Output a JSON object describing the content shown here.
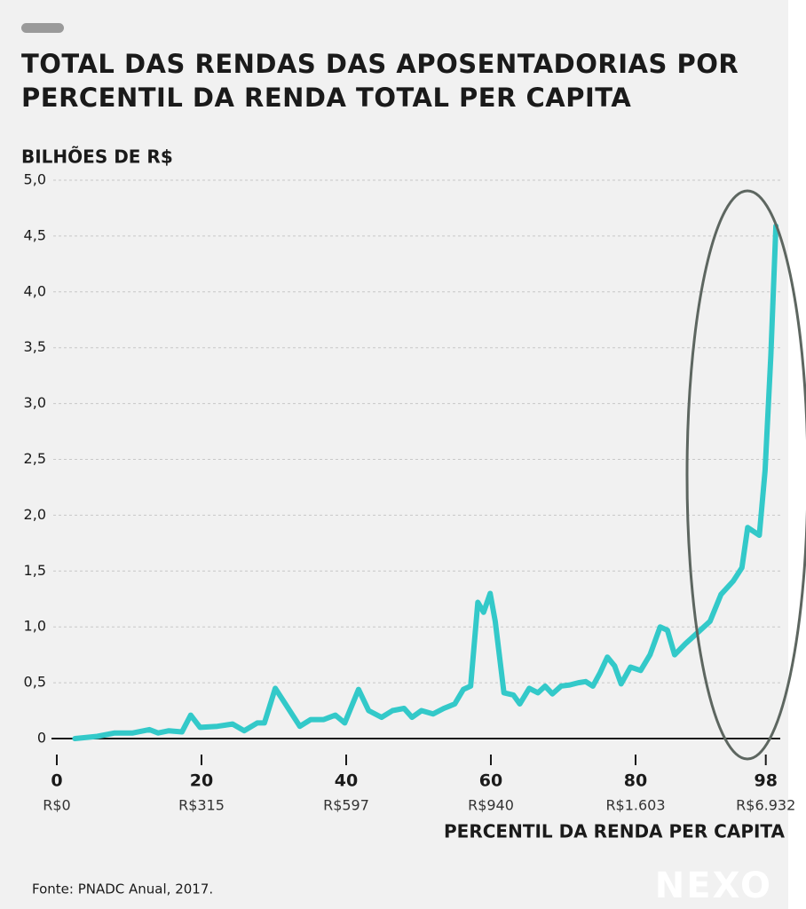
{
  "chart_data": {
    "type": "line",
    "title": [
      "TOTAL DAS RENDAS DAS APOSENTADORIAS POR",
      "PERCENTIL DA RENDA TOTAL PER CAPITA"
    ],
    "y_label": "BILHÕES DE R$",
    "x_label": "PERCENTIL DA RENDA PER CAPITA",
    "source": "Fonte: PNADC Anual, 2017.",
    "logo": "NEXO",
    "xlim": [
      0,
      100
    ],
    "ylim": [
      0,
      5
    ],
    "xticks": [
      0,
      20,
      40,
      60,
      80,
      98
    ],
    "xtick_sublabels": [
      "R$0",
      "R$315",
      "R$597",
      "R$940",
      "R$1.603",
      "R$6.932"
    ],
    "yticks": [
      0,
      {
        "value": 0.5,
        "label": "0,5"
      },
      {
        "value": 1,
        "label": "1,0"
      },
      {
        "value": 1.5,
        "label": "1,5"
      },
      {
        "value": 2,
        "label": "2,0"
      },
      {
        "value": 2.5,
        "label": "2,5"
      },
      {
        "value": 3,
        "label": "3,0"
      },
      {
        "value": 3.5,
        "label": "3,5"
      },
      {
        "value": 4,
        "label": "4,0"
      },
      {
        "value": 4.5,
        "label": "4,5"
      },
      {
        "value": 5,
        "label": "5,0"
      }
    ],
    "grid": true,
    "x": [
      2.5,
      5.6,
      8,
      10.5,
      12.8,
      14,
      15.5,
      17.3,
      18.5,
      19.8,
      22.2,
      24.3,
      25.9,
      27.7,
      28.7,
      30.2,
      31.4,
      33.6,
      35.1,
      36.9,
      38.5,
      39.8,
      41.7,
      43.1,
      44.9,
      46.4,
      48,
      49.1,
      50.4,
      52,
      53.5,
      55,
      56.2,
      57.2,
      58.2,
      59,
      59.9,
      60.6,
      61.8,
      63.1,
      64,
      65.3,
      66.5,
      67.5,
      68.5,
      69.7,
      70.9,
      72.1,
      73.1,
      74.1,
      75.1,
      76.1,
      77.1,
      78,
      79.3,
      80.7,
      82,
      83.4,
      84.4,
      85.4,
      86.9,
      88.6,
      90.3,
      91.8,
      93.5,
      94.7,
      95.5,
      97.1,
      97.9,
      98.7,
      99.4
    ],
    "series": [
      {
        "color": "#33c9c9",
        "values": [
          0,
          0.02,
          0.05,
          0.05,
          0.08,
          0.05,
          0.07,
          0.06,
          0.21,
          0.1,
          0.11,
          0.13,
          0.07,
          0.14,
          0.14,
          0.45,
          0.33,
          0.11,
          0.17,
          0.17,
          0.21,
          0.14,
          0.44,
          0.25,
          0.19,
          0.25,
          0.27,
          0.19,
          0.25,
          0.22,
          0.27,
          0.31,
          0.44,
          0.47,
          1.22,
          1.13,
          1.3,
          1.05,
          0.41,
          0.39,
          0.31,
          0.45,
          0.41,
          0.47,
          0.4,
          0.47,
          0.48,
          0.5,
          0.51,
          0.47,
          0.59,
          0.73,
          0.65,
          0.49,
          0.64,
          0.61,
          0.75,
          1.0,
          0.97,
          0.75,
          0.85,
          0.95,
          1.05,
          1.29,
          1.41,
          1.53,
          1.89,
          1.82,
          2.4,
          3.43,
          4.59
        ]
      }
    ]
  }
}
